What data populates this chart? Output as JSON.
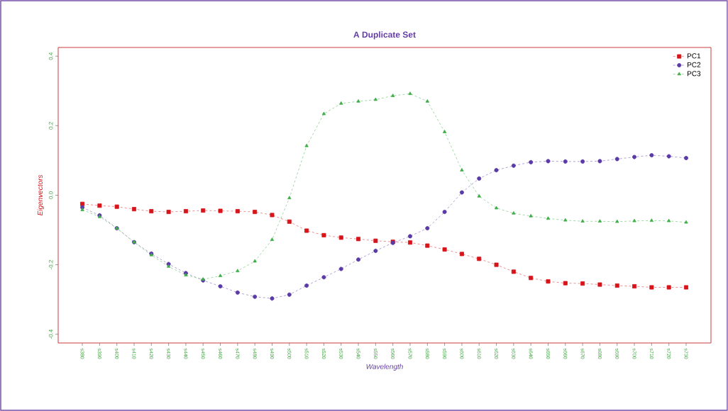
{
  "chart_data": {
    "type": "line",
    "title": "A Duplicate Set",
    "xlabel": "Wavelength",
    "ylabel": "Eigenvectors",
    "categories": [
      "s380",
      "s390",
      "s400",
      "s410",
      "s420",
      "s430",
      "s440",
      "s450",
      "s460",
      "s470",
      "s480",
      "s490",
      "s500",
      "s510",
      "s520",
      "s530",
      "s540",
      "s550",
      "s560",
      "s570",
      "s580",
      "s590",
      "s600",
      "s610",
      "s620",
      "s630",
      "s640",
      "s650",
      "s660",
      "s670",
      "s680",
      "s690",
      "s700",
      "s710",
      "s720",
      "s730"
    ],
    "series": [
      {
        "name": "PC1",
        "color": "#d7141a",
        "marker": "square",
        "values": [
          -0.025,
          -0.03,
          -0.033,
          -0.04,
          -0.046,
          -0.048,
          -0.046,
          -0.044,
          -0.045,
          -0.046,
          -0.048,
          -0.057,
          -0.076,
          -0.102,
          -0.115,
          -0.122,
          -0.126,
          -0.131,
          -0.134,
          -0.136,
          -0.145,
          -0.156,
          -0.169,
          -0.183,
          -0.2,
          -0.22,
          -0.238,
          -0.248,
          -0.253,
          -0.254,
          -0.257,
          -0.26,
          -0.262,
          -0.265,
          -0.265,
          -0.265
        ]
      },
      {
        "name": "PC2",
        "color": "#5a3aa6",
        "marker": "circle",
        "values": [
          -0.035,
          -0.058,
          -0.095,
          -0.135,
          -0.168,
          -0.198,
          -0.224,
          -0.245,
          -0.262,
          -0.28,
          -0.292,
          -0.297,
          -0.286,
          -0.26,
          -0.236,
          -0.212,
          -0.185,
          -0.16,
          -0.137,
          -0.118,
          -0.095,
          -0.048,
          0.008,
          0.048,
          0.072,
          0.085,
          0.095,
          0.098,
          0.097,
          0.097,
          0.098,
          0.104,
          0.11,
          0.115,
          0.112,
          0.107
        ]
      },
      {
        "name": "PC3",
        "color": "#3fae49",
        "marker": "triangle",
        "values": [
          -0.042,
          -0.062,
          -0.095,
          -0.135,
          -0.172,
          -0.205,
          -0.23,
          -0.242,
          -0.232,
          -0.218,
          -0.19,
          -0.128,
          -0.008,
          0.142,
          0.234,
          0.264,
          0.27,
          0.275,
          0.286,
          0.292,
          0.27,
          0.182,
          0.072,
          -0.003,
          -0.037,
          -0.052,
          -0.06,
          -0.067,
          -0.072,
          -0.075,
          -0.075,
          -0.076,
          -0.074,
          -0.073,
          -0.074,
          -0.078
        ]
      }
    ],
    "ylim": [
      -0.425,
      0.425
    ],
    "yticks": [
      {
        "value": -0.4,
        "label": "-0.4"
      },
      {
        "value": -0.2,
        "label": "-0.2"
      },
      {
        "value": 0,
        "label": "0.0"
      },
      {
        "value": 0.2,
        "label": "0.2"
      },
      {
        "value": 0.4,
        "label": "0.4"
      }
    ],
    "line_style": "dashed",
    "legend": "top right",
    "grid": false
  }
}
